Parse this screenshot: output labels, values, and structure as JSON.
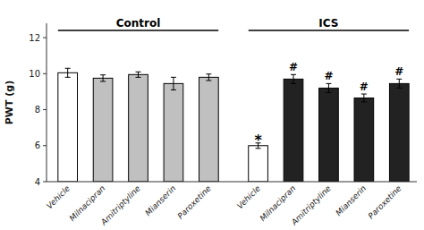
{
  "chart_data": {
    "type": "bar",
    "ylabel": "PWT (g)",
    "categories": [
      "Vehicle",
      "Milnacipran",
      "Amitriptyline",
      "Mianserin",
      "Paroxetine",
      "Vehicle",
      "Milnacipran",
      "Amitriptyline",
      "Mianserin",
      "Paroxetine"
    ],
    "values": [
      10.05,
      9.75,
      9.95,
      9.45,
      9.8,
      6.0,
      9.7,
      9.2,
      8.65,
      9.45
    ],
    "errors": [
      0.25,
      0.18,
      0.15,
      0.35,
      0.18,
      0.15,
      0.25,
      0.25,
      0.22,
      0.25
    ],
    "colors": [
      "#ffffff",
      "#c0c0c0",
      "#c0c0c0",
      "#c0c0c0",
      "#c0c0c0",
      "#ffffff",
      "#222222",
      "#222222",
      "#222222",
      "#222222"
    ],
    "ylim": [
      4,
      12.8
    ],
    "yticks": [
      4,
      6,
      8,
      10,
      12
    ],
    "grid": false,
    "groups": [
      {
        "label": "Control",
        "from": 0,
        "to": 4
      },
      {
        "label": "ICS",
        "from": 5,
        "to": 9
      }
    ],
    "annotations": [
      {
        "text": "*",
        "index": 5
      },
      {
        "text": "#",
        "index": 6
      },
      {
        "text": "#",
        "index": 7
      },
      {
        "text": "#",
        "index": 8
      },
      {
        "text": "#",
        "index": 9
      }
    ]
  }
}
